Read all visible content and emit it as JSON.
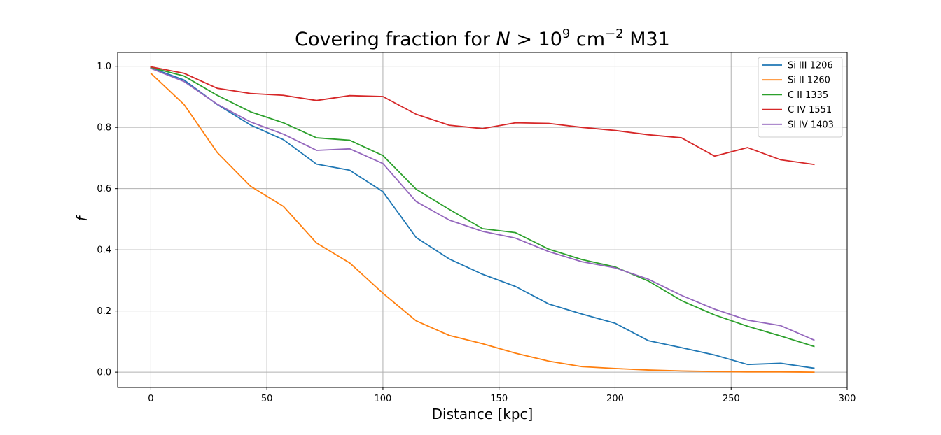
{
  "chart_data": {
    "type": "line",
    "title": {
      "prefix": "Covering fraction for ",
      "var": "N",
      "op": " > 10",
      "exp": "9",
      "unit": " cm",
      "unit_exp": "−2",
      "suffix": " M31"
    },
    "xlabel": "Distance [kpc]",
    "ylabel": "f",
    "xlim": [
      -14.3,
      300
    ],
    "ylim": [
      -0.05,
      1.045
    ],
    "xticks": [
      0,
      50,
      100,
      150,
      200,
      250,
      300
    ],
    "yticks": [
      0.0,
      0.2,
      0.4,
      0.6,
      0.8,
      1.0
    ],
    "grid": true,
    "legend_position": "top-right",
    "x": [
      0,
      14.3,
      28.6,
      42.9,
      57.1,
      71.4,
      85.7,
      100,
      114.3,
      128.6,
      142.9,
      157.1,
      171.4,
      185.7,
      200,
      214.3,
      228.6,
      242.9,
      257.1,
      271.4,
      285.7
    ],
    "series": [
      {
        "name": "Si III 1206",
        "color": "#1f77b4",
        "values": [
          0.995,
          0.955,
          0.875,
          0.808,
          0.76,
          0.68,
          0.66,
          0.59,
          0.44,
          0.37,
          0.32,
          0.28,
          0.223,
          0.19,
          0.16,
          0.103,
          0.08,
          0.056,
          0.025,
          0.029,
          0.013
        ]
      },
      {
        "name": "Si II 1260",
        "color": "#ff7f0e",
        "values": [
          0.977,
          0.875,
          0.718,
          0.608,
          0.542,
          0.422,
          0.357,
          0.258,
          0.168,
          0.12,
          0.093,
          0.062,
          0.036,
          0.018,
          0.012,
          0.007,
          0.004,
          0.002,
          0.001,
          0.001,
          0.0
        ]
      },
      {
        "name": "C II 1335",
        "color": "#2ca02c",
        "values": [
          0.996,
          0.968,
          0.905,
          0.851,
          0.815,
          0.766,
          0.758,
          0.708,
          0.598,
          0.532,
          0.469,
          0.456,
          0.402,
          0.368,
          0.344,
          0.298,
          0.234,
          0.187,
          0.15,
          0.118,
          0.084
        ]
      },
      {
        "name": "C IV 1551",
        "color": "#d62728",
        "values": [
          0.998,
          0.977,
          0.928,
          0.911,
          0.905,
          0.888,
          0.904,
          0.901,
          0.843,
          0.807,
          0.796,
          0.815,
          0.813,
          0.8,
          0.79,
          0.776,
          0.766,
          0.706,
          0.734,
          0.694,
          0.679
        ]
      },
      {
        "name": "Si IV 1403",
        "color": "#9467bd",
        "values": [
          0.993,
          0.95,
          0.876,
          0.818,
          0.778,
          0.725,
          0.73,
          0.682,
          0.558,
          0.497,
          0.46,
          0.438,
          0.394,
          0.361,
          0.341,
          0.304,
          0.251,
          0.206,
          0.17,
          0.152,
          0.105
        ]
      }
    ]
  }
}
